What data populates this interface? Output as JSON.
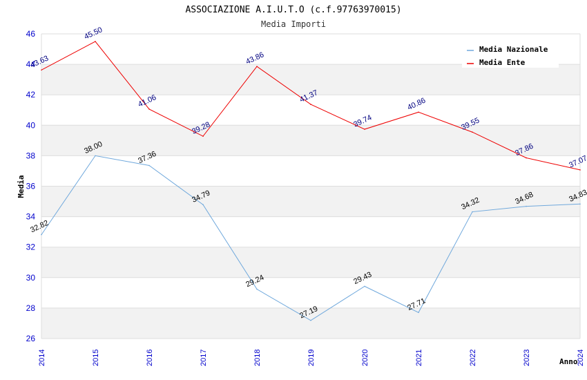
{
  "chart_data": {
    "type": "line",
    "title": "ASSOCIAZIONE A.I.U.T.O (c.f.97763970015)",
    "subtitle": "Media Importi",
    "xlabel": "Anno",
    "ylabel": "Media",
    "x": [
      "2014",
      "2015",
      "2016",
      "2017",
      "2018",
      "2019",
      "2020",
      "2021",
      "2022",
      "2023",
      "2024"
    ],
    "ylim": [
      26,
      46
    ],
    "yticks": [
      26,
      28,
      30,
      32,
      34,
      36,
      38,
      40,
      42,
      44,
      46
    ],
    "grid": true,
    "legend_position": "top-right",
    "series": [
      {
        "name": "Media Nazionale",
        "color": "#6fa8dc",
        "label_color": "#000000",
        "values": [
          32.82,
          38.0,
          37.36,
          34.79,
          29.24,
          27.19,
          29.43,
          27.71,
          34.32,
          34.68,
          34.83
        ],
        "labels": [
          "32.82",
          "38.00",
          "37.36",
          "34.79",
          "29.24",
          "27.19",
          "29.43",
          "27.71",
          "34.32",
          "34.68",
          "34.83"
        ]
      },
      {
        "name": "Media Ente",
        "color": "#ee0000",
        "label_color": "#000080",
        "values": [
          43.63,
          45.5,
          41.06,
          39.28,
          43.86,
          41.37,
          39.74,
          40.86,
          39.55,
          37.86,
          37.07
        ],
        "labels": [
          "43.63",
          "45.50",
          "41.06",
          "39.28",
          "43.86",
          "41.37",
          "39.74",
          "40.86",
          "39.55",
          "37.86",
          "37.07"
        ]
      }
    ],
    "colors": {
      "band": "#f2f2f2",
      "gridline": "#dddddd",
      "tick_text": "#0000cc"
    }
  }
}
